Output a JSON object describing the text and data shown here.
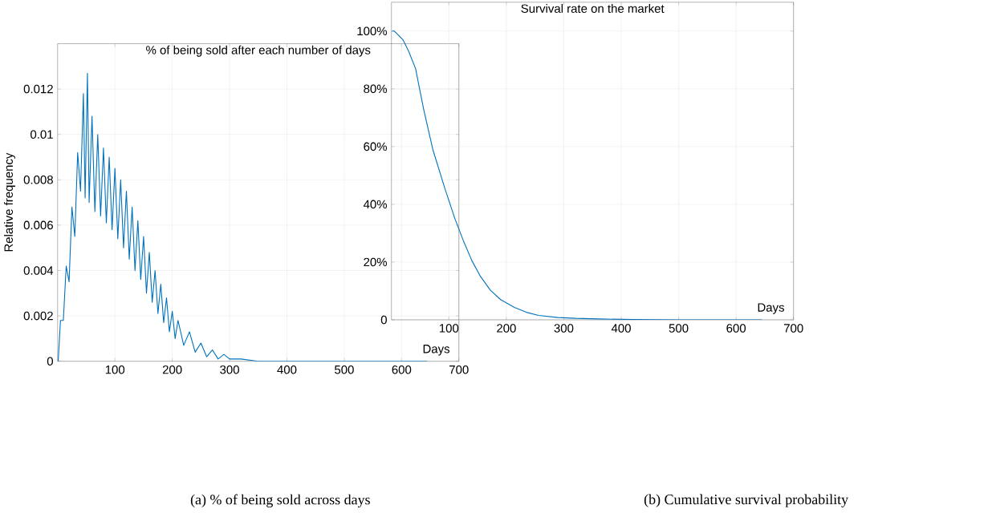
{
  "chart_data": [
    {
      "type": "line",
      "title": "% of being sold after each number of days",
      "xlabel": "Days",
      "ylabel": "Relative frequency",
      "annotations": [
        "(a) % of being sold across days"
      ],
      "grid": true,
      "xlim": [
        0,
        700
      ],
      "ylim": [
        0,
        0.014
      ],
      "xticks": [
        100,
        200,
        300,
        400,
        500,
        600,
        700
      ],
      "yticks": [
        0,
        0.002,
        0.004,
        0.006,
        0.008,
        0.01,
        0.012
      ],
      "series": [
        {
          "color": "#0072bd",
          "x": [
            1,
            5,
            10,
            15,
            20,
            25,
            30,
            35,
            40,
            45,
            48,
            52,
            55,
            60,
            65,
            70,
            75,
            80,
            85,
            90,
            95,
            100,
            105,
            110,
            115,
            120,
            125,
            130,
            135,
            140,
            145,
            150,
            155,
            160,
            165,
            170,
            175,
            180,
            185,
            190,
            195,
            200,
            205,
            210,
            220,
            230,
            240,
            250,
            260,
            270,
            280,
            290,
            300,
            320,
            350,
            400,
            500,
            645
          ],
          "values": [
            0.0,
            0.0018,
            0.0018,
            0.0042,
            0.0035,
            0.0068,
            0.0055,
            0.0092,
            0.0075,
            0.0118,
            0.0072,
            0.0127,
            0.007,
            0.0108,
            0.0066,
            0.01,
            0.0064,
            0.0094,
            0.0061,
            0.009,
            0.0058,
            0.0085,
            0.0054,
            0.008,
            0.005,
            0.0075,
            0.0045,
            0.0068,
            0.004,
            0.0062,
            0.0036,
            0.0055,
            0.003,
            0.0048,
            0.0026,
            0.004,
            0.0021,
            0.0034,
            0.0017,
            0.0028,
            0.0013,
            0.0022,
            0.001,
            0.0018,
            0.0007,
            0.0013,
            0.0004,
            0.0008,
            0.0002,
            0.0005,
            0.0001,
            0.0003,
            0.0001,
            0.0001,
            0.0,
            0.0,
            0.0,
            0.0
          ]
        }
      ]
    },
    {
      "type": "line",
      "title": "Survival rate on the market",
      "xlabel": "Days",
      "annotations": [
        "(b) Cumulative survival probability"
      ],
      "grid": true,
      "xlim": [
        0,
        700
      ],
      "ylim": [
        0,
        1.1
      ],
      "xticks": [
        100,
        200,
        300,
        400,
        500,
        600,
        700
      ],
      "yticks": [
        0,
        {
          "value": 0.2,
          "label": "20%"
        },
        {
          "value": 0.4,
          "label": "40%"
        },
        {
          "value": 0.6,
          "label": "60%"
        },
        {
          "value": 0.8,
          "label": "80%"
        },
        {
          "value": 1.0,
          "label": "100%"
        }
      ],
      "series": [
        {
          "color": "#0072bd",
          "x": [
            1,
            5,
            10,
            20,
            30,
            42,
            56,
            72,
            93,
            110,
            125,
            140,
            155,
            172,
            190,
            214,
            235,
            256,
            290,
            321,
            360,
            420,
            500,
            645
          ],
          "values": [
            1.0,
            1.0,
            0.99,
            0.97,
            0.93,
            0.87,
            0.73,
            0.59,
            0.455,
            0.353,
            0.275,
            0.205,
            0.15,
            0.103,
            0.07,
            0.043,
            0.026,
            0.015,
            0.008,
            0.005,
            0.003,
            0.001,
            0.0,
            0.0
          ]
        }
      ]
    }
  ]
}
